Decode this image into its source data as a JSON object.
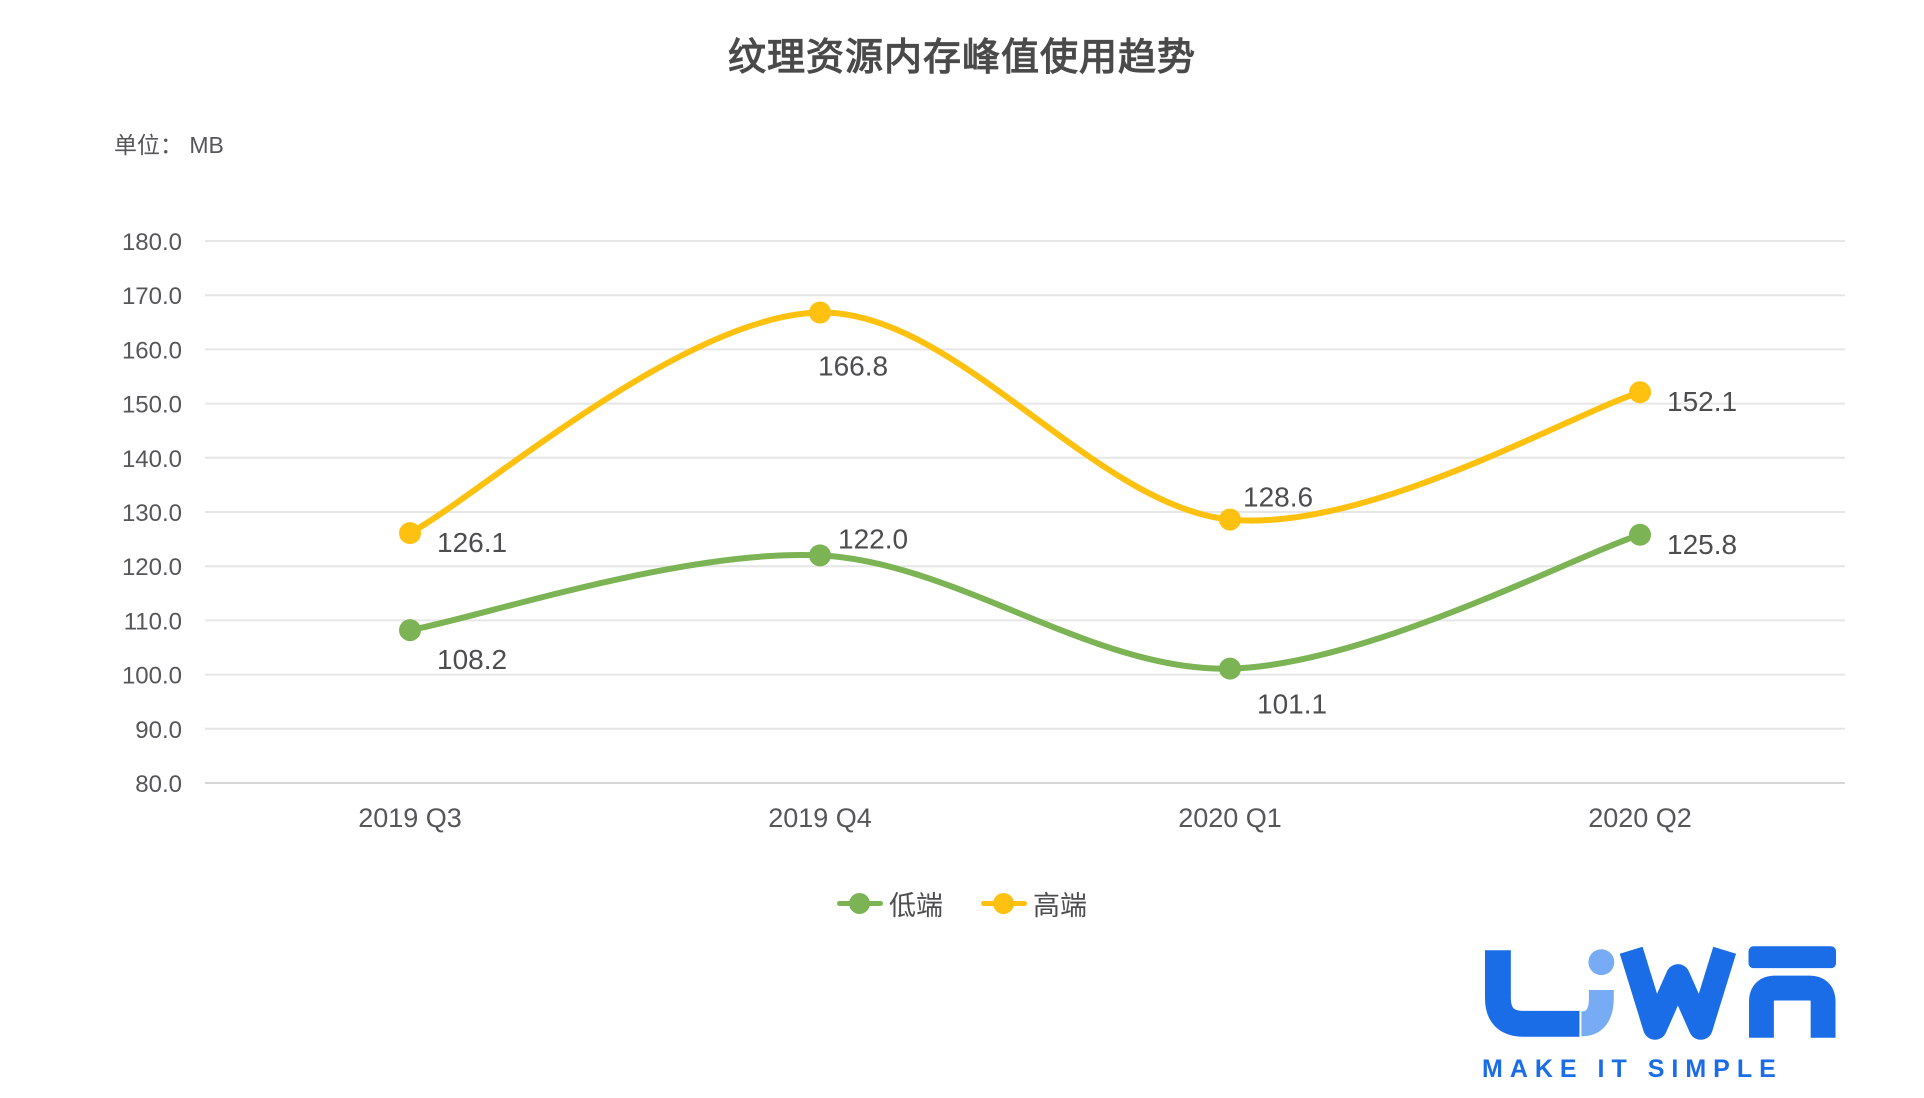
{
  "header": {
    "title": "纹理资源内存峰值使用趋势",
    "unit_label": "单位： MB"
  },
  "chart_data": {
    "type": "line",
    "title": "纹理资源内存峰值使用趋势",
    "unit": "MB",
    "categories": [
      "2019 Q3",
      "2019 Q4",
      "2020 Q1",
      "2020 Q2"
    ],
    "series": [
      {
        "name": "低端",
        "color": "#7cb354",
        "values": [
          108.2,
          122.0,
          101.1,
          125.8
        ],
        "label_offsets": [
          [
            27,
            30
          ],
          [
            18,
            -16
          ],
          [
            27,
            36
          ],
          [
            27,
            10
          ]
        ]
      },
      {
        "name": "高端",
        "color": "#ffc110",
        "values": [
          126.1,
          166.8,
          128.6,
          152.1
        ],
        "label_offsets": [
          [
            27,
            10
          ],
          [
            -2,
            54
          ],
          [
            13,
            -22
          ],
          [
            27,
            10
          ]
        ]
      }
    ],
    "ylim": [
      80,
      180
    ],
    "ytick_step": 10,
    "ytick_labels": [
      "80.0",
      "90.0",
      "100.0",
      "110.0",
      "120.0",
      "130.0",
      "140.0",
      "150.0",
      "160.0",
      "170.0",
      "180.0"
    ],
    "grid": "horizontal",
    "smooth": true,
    "legend_position": "bottom",
    "axis_text_color": "#55565a",
    "data_label_color": "#4d4d4f",
    "gridline_color": "#e6e6e6",
    "baseline_color": "#d6d6d6"
  },
  "legend": {
    "items": [
      {
        "label": "低端",
        "color": "#7cb354"
      },
      {
        "label": "高端",
        "color": "#ffc110"
      }
    ]
  },
  "logo": {
    "wordmark": "LiWA",
    "tagline": "MAKE IT SIMPLE",
    "primary_color": "#1a6de6",
    "accent_color": "#77abf3"
  }
}
